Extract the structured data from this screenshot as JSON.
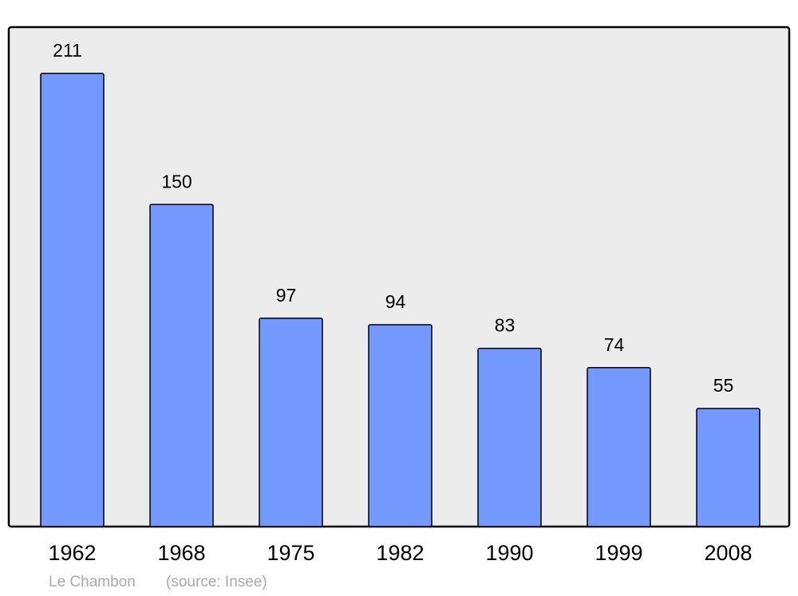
{
  "chart_data": {
    "type": "bar",
    "color": "#7399ff",
    "categories": [
      "1962",
      "1968",
      "1975",
      "1982",
      "1990",
      "1999",
      "2008"
    ],
    "values": [
      211,
      150,
      97,
      94,
      83,
      74,
      55
    ],
    "caption": "Le Chambon",
    "source": "(source: Insee)"
  }
}
